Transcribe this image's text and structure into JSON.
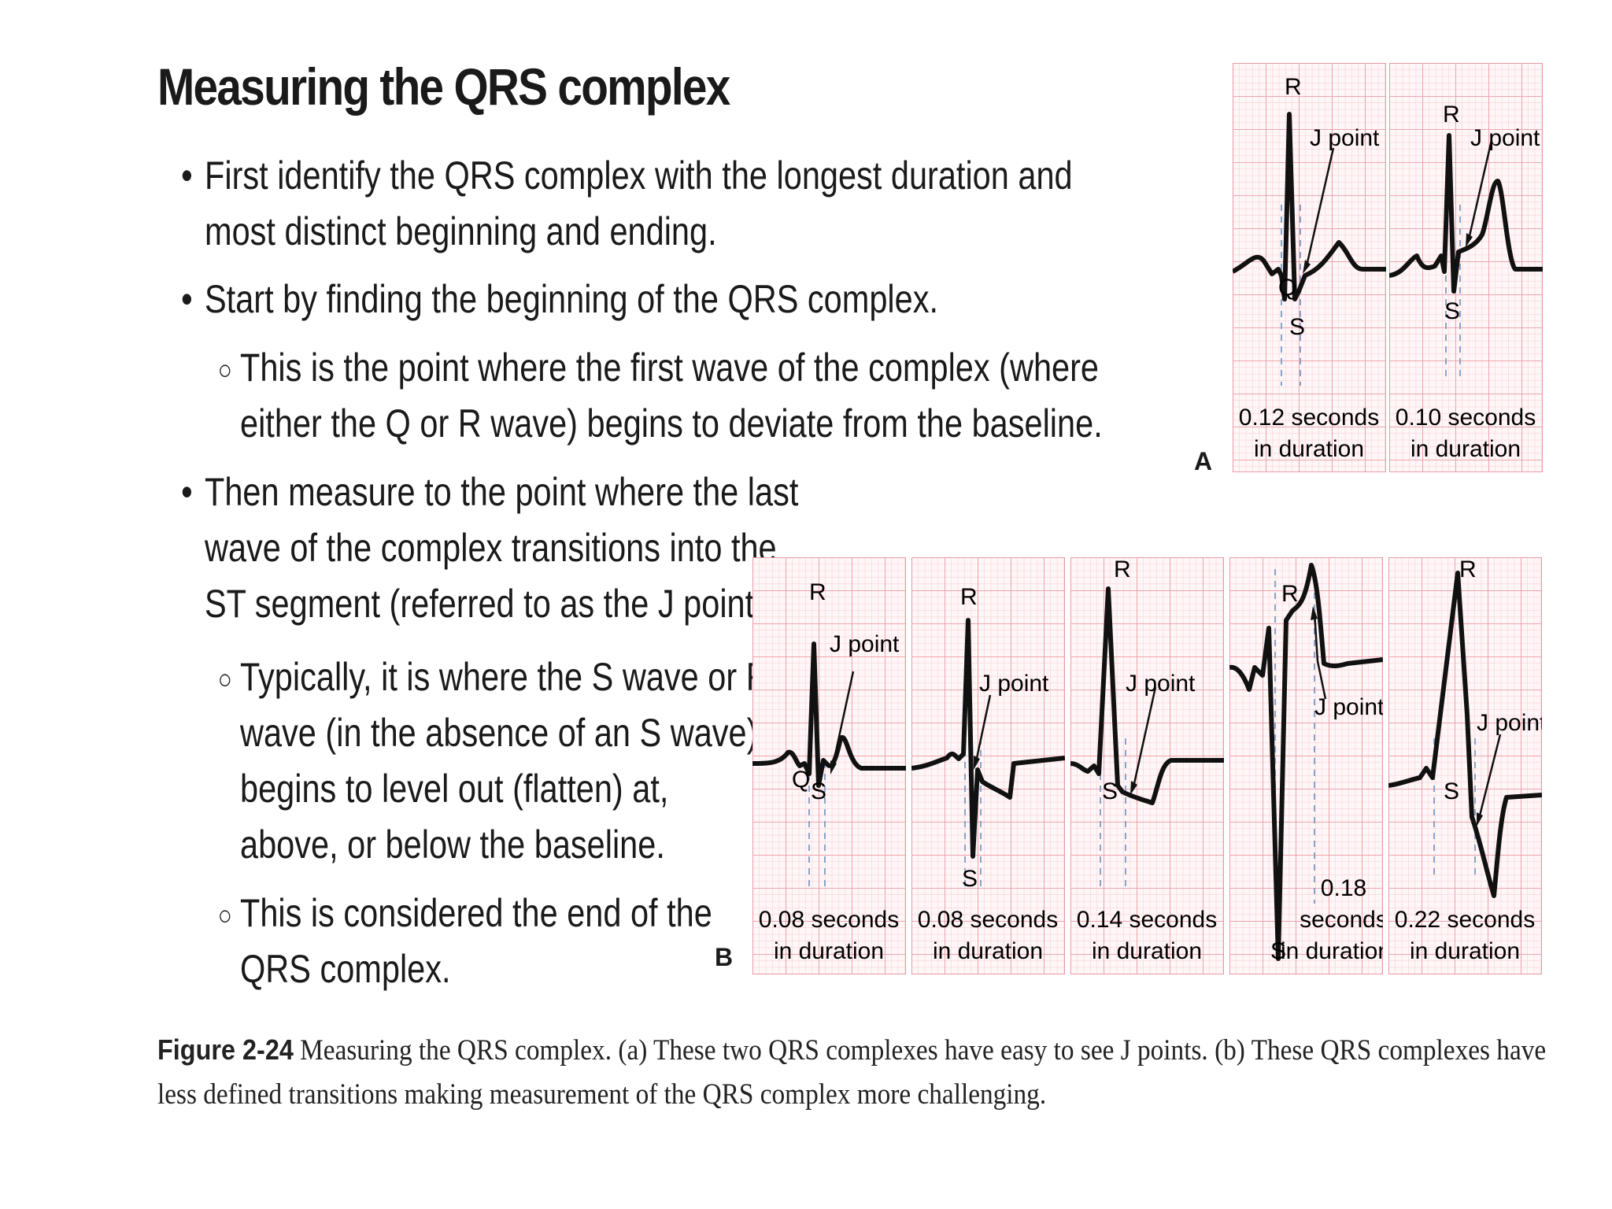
{
  "title": "Measuring the QRS complex",
  "bullets": {
    "b1": [
      "First identify the QRS complex with the longest duration and",
      "most distinct beginning and ending."
    ],
    "b2": [
      "Start by finding the beginning of the QRS complex."
    ],
    "b2_sub": [
      "This is the point where the first wave of the complex (where",
      "either the Q or R wave) begins to deviate from the baseline."
    ],
    "b3": [
      "Then measure to the point where the last",
      "wave of the complex transitions into the",
      "ST segment (referred to as the J point)."
    ],
    "b3_sub1": [
      "Typically, it is where the S wave or R",
      "wave (in the absence of an S wave)",
      "begins to level out (flatten) at,",
      "above, or below the baseline."
    ],
    "b3_sub2": [
      "This is considered the end of the",
      "QRS complex."
    ]
  },
  "figure": {
    "panel_a_letter": "A",
    "panel_b_letter": "B",
    "strips": {
      "a1": {
        "r": "R",
        "q": "Q",
        "s": "S",
        "j": "J point",
        "dur1": "0.12 seconds",
        "dur2": "in duration"
      },
      "a2": {
        "r": "R",
        "s": "S",
        "j": "J point",
        "dur1": "0.10 seconds",
        "dur2": "in duration"
      },
      "b1": {
        "r": "R",
        "q": "Q",
        "s": "S",
        "j": "J point",
        "dur1": "0.08 seconds",
        "dur2": "in duration"
      },
      "b2": {
        "r": "R",
        "s": "S",
        "j": "J point",
        "dur1": "0.08 seconds",
        "dur2": "in duration"
      },
      "b3": {
        "r": "R",
        "s": "S",
        "j": "J point",
        "dur1": "0.14 seconds",
        "dur2": "in duration"
      },
      "b4": {
        "r": "R",
        "s": "S",
        "j": "J point",
        "dur0": "0.18",
        "dur1": "seconds",
        "dur2": "in duration"
      },
      "b5": {
        "r": "R",
        "s": "S",
        "j": "J point",
        "dur1": "0.22 seconds",
        "dur2": "in duration"
      }
    }
  },
  "caption": {
    "label": "Figure 2-24",
    "line1": " Measuring the QRS complex. (a) These two QRS complexes have easy to see J points. (b) These QRS complexes have",
    "line2": "less defined transitions making measurement of the QRS complex more challenging."
  },
  "colors": {
    "grid_major": "#e99aa5",
    "grid_minor": "#f6cbd1",
    "paper": "#fff6f7",
    "trace": "#111111",
    "marker": "#8aa4c8"
  }
}
